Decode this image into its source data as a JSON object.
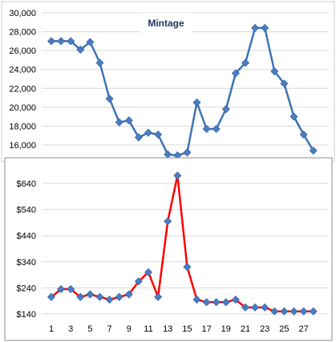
{
  "chart_data": [
    {
      "type": "line",
      "legend": "Mintage",
      "legend_position": "top-center",
      "color": "#3f72b6",
      "marker_color": "#4a7cc2",
      "ylim": [
        15000,
        30000
      ],
      "yticks": [
        "30,000",
        "28,000",
        "26,000",
        "24,000",
        "22,000",
        "20,000",
        "18,000",
        "16,000"
      ],
      "ytick_values": [
        30000,
        28000,
        26000,
        24000,
        22000,
        20000,
        18000,
        16000
      ],
      "grid": "horizontal",
      "x": [
        1,
        2,
        3,
        4,
        5,
        6,
        7,
        8,
        9,
        10,
        11,
        12,
        13,
        14,
        15,
        16,
        17,
        18,
        19,
        20,
        21,
        22,
        23,
        24,
        25,
        26,
        27,
        28
      ],
      "values": [
        27000,
        27000,
        27000,
        26100,
        26900,
        24700,
        20900,
        18400,
        18600,
        16800,
        17300,
        17100,
        15000,
        14900,
        15200,
        20500,
        17700,
        17700,
        19800,
        23600,
        24700,
        28400,
        28400,
        23800,
        22500,
        19000,
        17100,
        15400
      ]
    },
    {
      "type": "line",
      "color": "#ff0000",
      "marker_color": "#4a7cc2",
      "ylim": [
        140,
        690
      ],
      "yticks": [
        "$640",
        "$540",
        "$440",
        "$340",
        "$240",
        "$140"
      ],
      "ytick_values": [
        640,
        540,
        440,
        340,
        240,
        140
      ],
      "grid": "horizontal",
      "x": [
        1,
        2,
        3,
        4,
        5,
        6,
        7,
        8,
        9,
        10,
        11,
        12,
        13,
        14,
        15,
        16,
        17,
        18,
        19,
        20,
        21,
        22,
        23,
        24,
        25,
        26,
        27,
        28
      ],
      "xtick_labels": [
        "1",
        "3",
        "5",
        "7",
        "9",
        "11",
        "13",
        "15",
        "17",
        "19",
        "21",
        "23",
        "25",
        "27"
      ],
      "xtick_values": [
        1,
        3,
        5,
        7,
        9,
        11,
        13,
        15,
        17,
        19,
        21,
        23,
        25,
        27
      ],
      "values": [
        205,
        235,
        235,
        205,
        215,
        205,
        195,
        205,
        215,
        265,
        300,
        205,
        495,
        670,
        320,
        195,
        185,
        185,
        185,
        195,
        165,
        165,
        165,
        150,
        150,
        150,
        150,
        150
      ]
    }
  ]
}
